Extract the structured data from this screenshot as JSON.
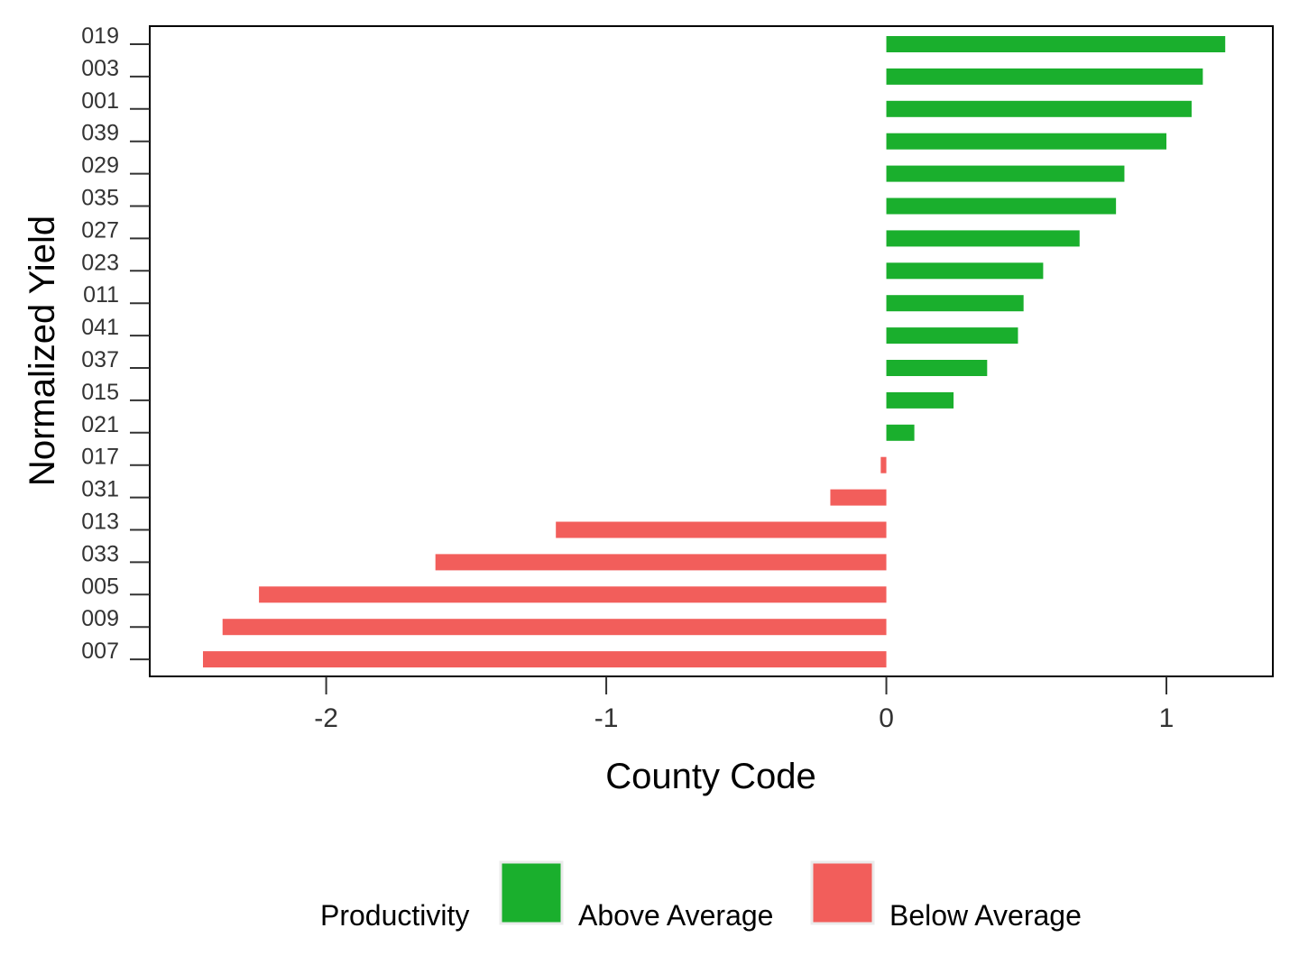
{
  "chart_data": {
    "type": "bar",
    "orientation": "horizontal",
    "categories": [
      "019",
      "003",
      "001",
      "039",
      "029",
      "035",
      "027",
      "023",
      "011",
      "041",
      "037",
      "015",
      "021",
      "017",
      "031",
      "013",
      "033",
      "005",
      "009",
      "007"
    ],
    "values": [
      1.21,
      1.13,
      1.09,
      1.0,
      0.85,
      0.82,
      0.69,
      0.56,
      0.49,
      0.47,
      0.36,
      0.24,
      0.1,
      -0.02,
      -0.2,
      -1.18,
      -1.61,
      -2.24,
      -2.37,
      -2.44
    ],
    "groups": [
      "Above Average",
      "Above Average",
      "Above Average",
      "Above Average",
      "Above Average",
      "Above Average",
      "Above Average",
      "Above Average",
      "Above Average",
      "Above Average",
      "Above Average",
      "Above Average",
      "Above Average",
      "Below Average",
      "Below Average",
      "Below Average",
      "Below Average",
      "Below Average",
      "Below Average",
      "Below Average"
    ],
    "xlabel": "County Code",
    "ylabel": "Normalized Yield",
    "xlim": [
      -2.63,
      1.38
    ],
    "xticks": [
      -2,
      -1,
      0,
      1
    ],
    "xtick_labels": [
      "-2",
      "-1",
      "0",
      "1"
    ],
    "grid": false,
    "legend": {
      "title": "Productivity",
      "placement": "bottom",
      "entries": [
        {
          "label": "Above Average",
          "color": "#1aaf2d"
        },
        {
          "label": "Below Average",
          "color": "#f25e5b"
        }
      ]
    }
  }
}
